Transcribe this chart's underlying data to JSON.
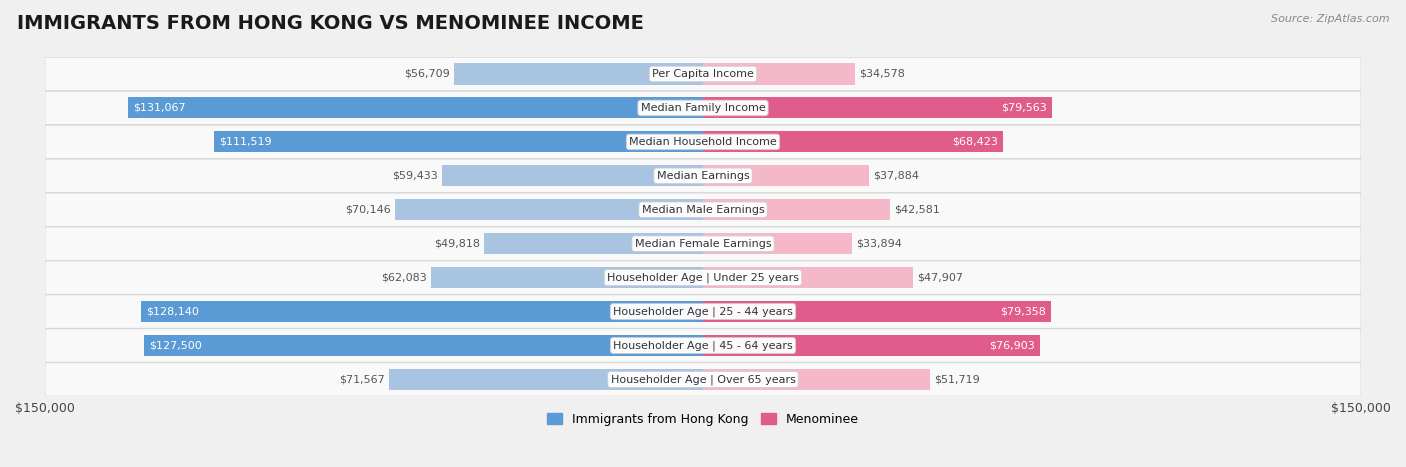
{
  "title": "IMMIGRANTS FROM HONG KONG VS MENOMINEE INCOME",
  "source": "Source: ZipAtlas.com",
  "categories": [
    "Per Capita Income",
    "Median Family Income",
    "Median Household Income",
    "Median Earnings",
    "Median Male Earnings",
    "Median Female Earnings",
    "Householder Age | Under 25 years",
    "Householder Age | 25 - 44 years",
    "Householder Age | 45 - 64 years",
    "Householder Age | Over 65 years"
  ],
  "hk_values": [
    56709,
    131067,
    111519,
    59433,
    70146,
    49818,
    62083,
    128140,
    127500,
    71567
  ],
  "men_values": [
    34578,
    79563,
    68423,
    37884,
    42581,
    33894,
    47907,
    79358,
    76903,
    51719
  ],
  "hk_labels": [
    "$56,709",
    "$131,067",
    "$111,519",
    "$59,433",
    "$70,146",
    "$49,818",
    "$62,083",
    "$128,140",
    "$127,500",
    "$71,567"
  ],
  "men_labels": [
    "$34,578",
    "$79,563",
    "$68,423",
    "$37,884",
    "$42,581",
    "$33,894",
    "$47,907",
    "$79,358",
    "$76,903",
    "$51,719"
  ],
  "hk_color_light": "#a8c4e0",
  "hk_color_dark": "#5b9bd5",
  "men_color_light": "#f4b8c8",
  "men_color_dark": "#e05c8a",
  "hk_threshold": 100000,
  "men_threshold": 65000,
  "max_value": 150000,
  "background_color": "#f0f0f0",
  "row_color": "#f9f9f9",
  "title_fontsize": 14,
  "bar_label_fontsize": 8,
  "cat_label_fontsize": 8,
  "legend_fontsize": 9,
  "axis_label": "$150,000",
  "legend_label_hk": "Immigrants from Hong Kong",
  "legend_label_men": "Menominee"
}
